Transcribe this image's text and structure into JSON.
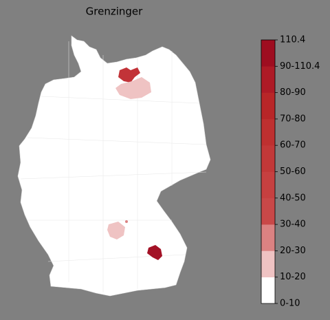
{
  "title": "Grenzinger",
  "colorbar": {
    "labels": [
      "0-10",
      "10-20",
      "20-30",
      "30-40",
      "40-50",
      "50-60",
      "60-70",
      "70-80",
      "80-90",
      "90-110.4",
      "110.4"
    ],
    "colors": [
      "#ffffff",
      "#efc3c3",
      "#db8282",
      "#c94848",
      "#c64040",
      "#c23838",
      "#be3030",
      "#b82628",
      "#ae1a26",
      "#9e0d20"
    ]
  }
}
